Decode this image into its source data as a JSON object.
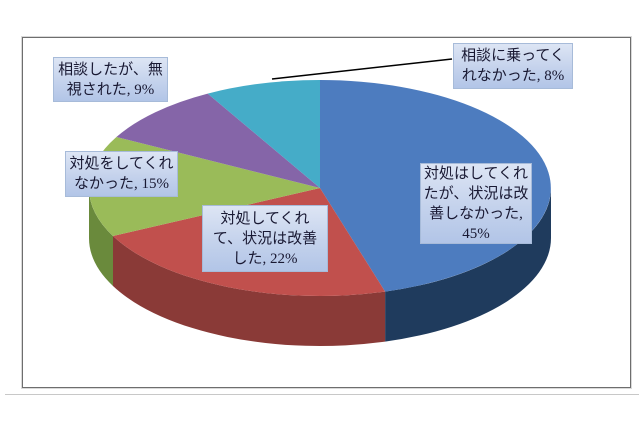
{
  "page": {
    "background": "#ffffff",
    "frame_border_color": "#6e6e6e",
    "divider_color": "#c8c8c8",
    "label_box_gradient_top": "#dde5f4",
    "label_box_gradient_bottom": "#b2c5e7",
    "label_text_color": "#191933"
  },
  "chart_data": {
    "type": "pie",
    "style": "3d",
    "title": "",
    "unit": "%",
    "rotation": "clockwise-from-top",
    "legend": "none",
    "categories": [
      "対処はしてくれたが、状況は改善しなかった",
      "対処してくれて、状況は改善した",
      "対処をしてくれなかった",
      "相談したが、無視された",
      "相談に乗ってくれなかった"
    ],
    "values": [
      45,
      22,
      15,
      9,
      8
    ],
    "slices": [
      {
        "id": "not-improved",
        "name": "対処はしてくれたが、状況は改善しなかった",
        "value": 45,
        "color": "#4D7CBF",
        "side_color": "#1F3B5D",
        "label_text": "対処はしてくれ\nたが、状況は改\n善しなかった,\n45%"
      },
      {
        "id": "improved",
        "name": "対処してくれて、状況は改善した",
        "value": 22,
        "color": "#C1504D",
        "side_color": "#8A3A37",
        "label_text": "対処してくれ\nて、状況は改善\nした, 22%"
      },
      {
        "id": "not-handled",
        "name": "対処をしてくれなかった",
        "value": 15,
        "color": "#9ABB59",
        "side_color": "#6A8A3C",
        "label_text": "対処をしてくれ\nなかった, 15%"
      },
      {
        "id": "ignored",
        "name": "相談したが、無視された",
        "value": 9,
        "color": "#8565A8",
        "side_color": "#5C477A",
        "label_text": "相談したが、無\n視された, 9%"
      },
      {
        "id": "refused",
        "name": "相談に乗ってくれなかった",
        "value": 8,
        "color": "#45ACC8",
        "side_color": "#2E7789",
        "label_text": "相談に乗ってく\nれなかった, 8%"
      }
    ],
    "leader_line": {
      "from_slice": "refused",
      "to_label": "相談に乗ってくれなかった, 8%",
      "color": "#000000"
    }
  }
}
